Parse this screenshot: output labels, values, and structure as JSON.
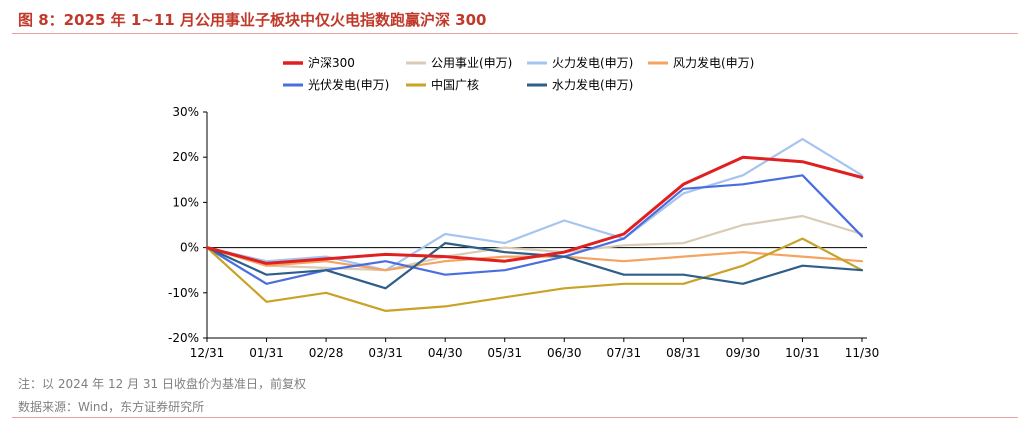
{
  "figure": {
    "title": "图 8：2025 年 1~11 月公用事业子板块中仅火电指数跑赢沪深 300",
    "note": "注：以 2024 年 12 月 31 日收盘价为基准日，前复权",
    "source": "数据来源：Wind，东方证券研究所"
  },
  "chart_data": {
    "type": "line",
    "x": [
      "12/31",
      "01/31",
      "02/28",
      "03/31",
      "04/30",
      "05/31",
      "06/30",
      "07/31",
      "08/31",
      "09/30",
      "10/31",
      "11/30"
    ],
    "ylim": [
      -20,
      30
    ],
    "yticks": [
      "30%",
      "20%",
      "10%",
      "0%",
      "-10%",
      "-20%"
    ],
    "ytick_values": [
      30,
      20,
      10,
      0,
      -10,
      -20
    ],
    "grid": false,
    "legend_position": "top",
    "series": [
      {
        "name": "沪深300",
        "color": "#e02020",
        "values": [
          0,
          -3.5,
          -2.5,
          -1.5,
          -2,
          -3,
          -1,
          3,
          14,
          20,
          19,
          15.5
        ]
      },
      {
        "name": "公用事业(申万)",
        "color": "#d9cbb5",
        "values": [
          0,
          -4,
          -4.5,
          -5,
          -2,
          0,
          -1,
          0.5,
          1,
          5,
          7,
          3
        ]
      },
      {
        "name": "火力发电(申万)",
        "color": "#a6c4f0",
        "values": [
          0,
          -3,
          -2,
          -5,
          3,
          1,
          6,
          2,
          12,
          16,
          24,
          16
        ]
      },
      {
        "name": "风力发电(申万)",
        "color": "#f4a460",
        "values": [
          0,
          -4,
          -3,
          -5,
          -3,
          -2,
          -2,
          -3,
          -2,
          -1,
          -2,
          -3
        ]
      },
      {
        "name": "光伏发电(申万)",
        "color": "#4a6ee0",
        "values": [
          0,
          -8,
          -5,
          -3,
          -6,
          -5,
          -2,
          2,
          13,
          14,
          16,
          2.5
        ]
      },
      {
        "name": "中国广核",
        "color": "#c9a227",
        "values": [
          0,
          -12,
          -10,
          -14,
          -13,
          -11,
          -9,
          -8,
          -8,
          -4,
          2,
          -5
        ]
      },
      {
        "name": "水力发电(申万)",
        "color": "#2e5e8a",
        "values": [
          0,
          -6,
          -5,
          -9,
          1,
          -1,
          -2,
          -6,
          -6,
          -8,
          -4,
          -5
        ]
      }
    ]
  }
}
